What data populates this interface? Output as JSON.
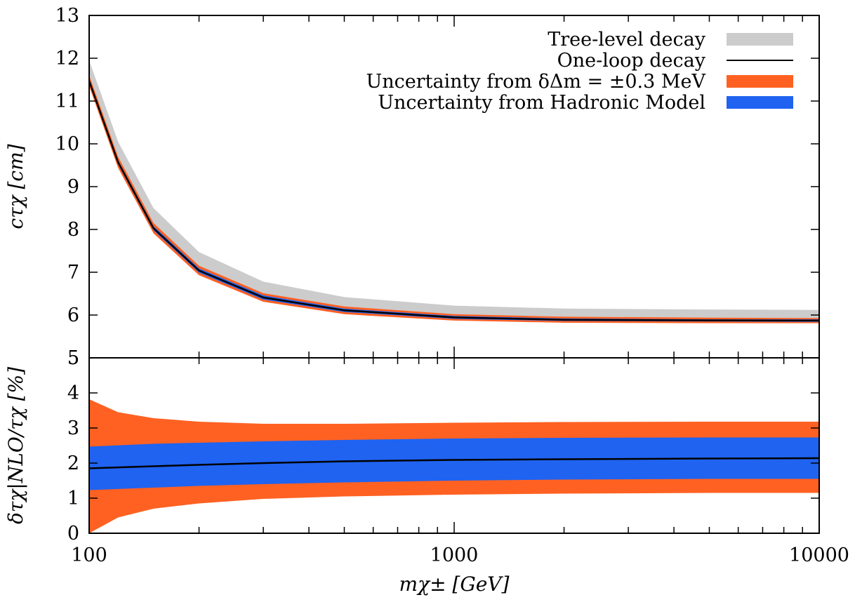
{
  "chart_data": [
    {
      "type": "area",
      "xscale": "log",
      "xlim": [
        100,
        10000
      ],
      "ylim": [
        5,
        13
      ],
      "yticks": [
        5,
        6,
        7,
        8,
        9,
        10,
        11,
        12,
        13
      ],
      "ylabel": "cτχ [cm]",
      "legend": {
        "placement": "top-right",
        "entries": [
          {
            "label": "Tree-level decay",
            "color": "#cccccc",
            "style": "band"
          },
          {
            "label": "One-loop decay",
            "color": "#000000",
            "style": "line"
          },
          {
            "label": "Uncertainty from δΔm = ±0.3 MeV",
            "color": "#ff6122",
            "style": "band"
          },
          {
            "label": "Uncertainty from Hadronic Model",
            "color": "#1f63f0",
            "style": "band"
          }
        ]
      },
      "series": [
        {
          "name": "Tree-level decay",
          "x": [
            100,
            120,
            150,
            200,
            300,
            500,
            1000,
            2000,
            5000,
            10000
          ],
          "y_low": [
            11.5,
            9.6,
            8.05,
            7.02,
            6.38,
            6.08,
            5.9,
            5.85,
            5.84,
            5.84
          ],
          "y_high": [
            11.95,
            10.05,
            8.5,
            7.47,
            6.78,
            6.42,
            6.22,
            6.15,
            6.13,
            6.12
          ]
        },
        {
          "name": "Uncertainty from δΔm = ±0.3 MeV",
          "x": [
            100,
            120,
            150,
            200,
            300,
            500,
            1000,
            2000,
            5000,
            10000
          ],
          "y_low": [
            11.35,
            9.44,
            7.91,
            6.93,
            6.31,
            6.02,
            5.87,
            5.82,
            5.81,
            5.81
          ],
          "y_high": [
            11.6,
            9.7,
            8.15,
            7.15,
            6.51,
            6.2,
            6.02,
            5.96,
            5.94,
            5.93
          ]
        },
        {
          "name": "Uncertainty from Hadronic Model",
          "x": [
            100,
            120,
            150,
            200,
            300,
            500,
            1000,
            2000,
            5000,
            10000
          ],
          "y_low": [
            11.43,
            9.52,
            7.98,
            6.99,
            6.36,
            6.07,
            5.91,
            5.86,
            5.85,
            5.84
          ],
          "y_high": [
            11.52,
            9.62,
            8.08,
            7.09,
            6.46,
            6.15,
            5.98,
            5.92,
            5.9,
            5.9
          ]
        },
        {
          "name": "One-loop decay",
          "x": [
            100,
            120,
            150,
            200,
            300,
            500,
            1000,
            2000,
            5000,
            10000
          ],
          "y": [
            11.47,
            9.57,
            8.03,
            7.04,
            6.41,
            6.11,
            5.945,
            5.89,
            5.875,
            5.87
          ]
        }
      ]
    },
    {
      "type": "area",
      "xscale": "log",
      "xlim": [
        100,
        10000
      ],
      "ylim": [
        0,
        5
      ],
      "yticks": [
        0,
        1,
        2,
        3,
        4,
        5
      ],
      "xticks": [
        100,
        1000,
        10000
      ],
      "xtick_labels": [
        "100",
        "1000",
        "10000"
      ],
      "xlabel": "mχ± [GeV]",
      "ylabel": "δτχ|NLO/τχ [%]",
      "series": [
        {
          "name": "Uncertainty from δΔm = ±0.3 MeV",
          "x": [
            100,
            120,
            150,
            200,
            300,
            500,
            1000,
            2000,
            5000,
            10000
          ],
          "y_low": [
            0.0,
            0.45,
            0.7,
            0.85,
            0.98,
            1.05,
            1.1,
            1.13,
            1.15,
            1.15
          ],
          "y_high": [
            3.82,
            3.45,
            3.28,
            3.18,
            3.12,
            3.12,
            3.15,
            3.17,
            3.18,
            3.18
          ]
        },
        {
          "name": "Uncertainty from Hadronic Model",
          "x": [
            100,
            150,
            200,
            300,
            500,
            1000,
            2000,
            5000,
            10000
          ],
          "y_low": [
            1.23,
            1.3,
            1.35,
            1.4,
            1.45,
            1.5,
            1.53,
            1.55,
            1.55
          ],
          "y_high": [
            2.47,
            2.55,
            2.58,
            2.62,
            2.66,
            2.7,
            2.72,
            2.73,
            2.73
          ]
        },
        {
          "name": "One-loop decay",
          "x": [
            100,
            150,
            200,
            300,
            500,
            1000,
            2000,
            5000,
            10000
          ],
          "y": [
            1.85,
            1.91,
            1.95,
            2.0,
            2.05,
            2.09,
            2.11,
            2.13,
            2.14
          ]
        }
      ]
    }
  ]
}
